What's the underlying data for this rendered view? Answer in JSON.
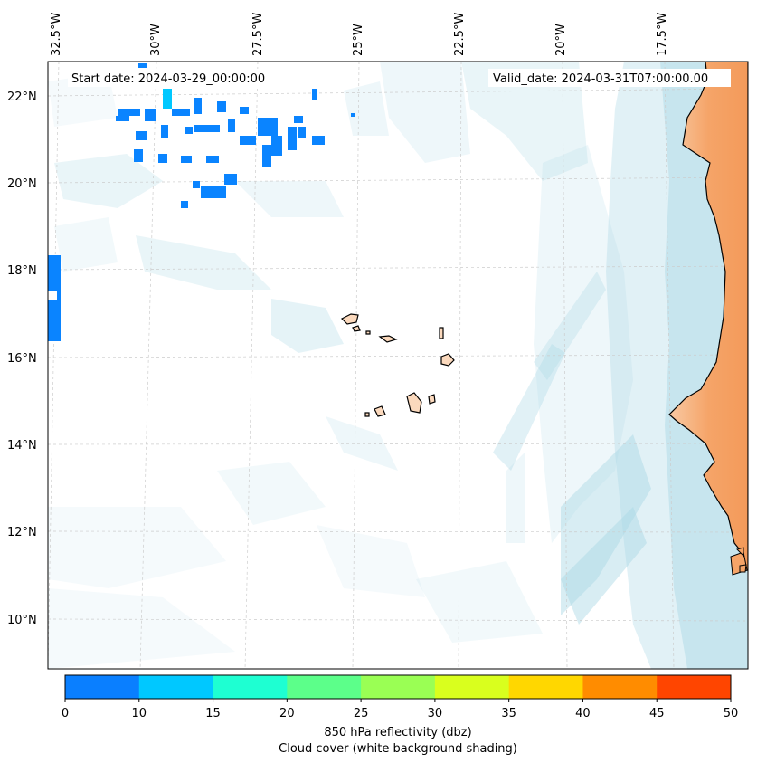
{
  "map": {
    "start_date": "Start date: 2024-03-29_00:00:00",
    "valid_date": "Valid_date: 2024-03-31T07:00:00.00",
    "lon_labels": [
      "32.5°W",
      "30°W",
      "27.5°W",
      "25°W",
      "22.5°W",
      "20°W",
      "17.5°W"
    ],
    "lat_labels": [
      "22°N",
      "20°N",
      "18°N",
      "16°N",
      "14°N",
      "12°N",
      "10°N"
    ],
    "colors": {
      "land": "#f5a468",
      "land_light": "#fbd9bd",
      "cloud": "#a9d6e5",
      "reflectivity_low": "#0a84ff",
      "coastline": "#000000"
    }
  },
  "colorbar": {
    "ticks": [
      "0",
      "10",
      "15",
      "20",
      "25",
      "30",
      "35",
      "40",
      "45",
      "50"
    ],
    "colors": [
      "#0a7fff",
      "#00c8ff",
      "#1effd2",
      "#5cff8a",
      "#9aff54",
      "#d9ff1e",
      "#ffd700",
      "#ff8c00",
      "#ff4500"
    ],
    "label1": "850 hPa reflectivity (dbz)",
    "label2": "Cloud cover (white background shading)"
  }
}
